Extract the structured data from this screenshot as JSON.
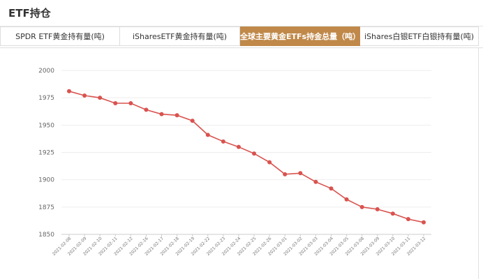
{
  "panel": {
    "title": "ETF持仓"
  },
  "tabs": [
    {
      "label": "SPDR ETF黄金持有量(吨)",
      "active": false
    },
    {
      "label": "iSharesETF黄金持有量(吨)",
      "active": false
    },
    {
      "label": "全球主要黄金ETFs持金总量（吨）",
      "active": true
    },
    {
      "label": "iShares白银ETF白银持有量(吨)",
      "active": false
    }
  ],
  "colors": {
    "accent": "#c0894a",
    "line": "#d9534f"
  },
  "chart_data": {
    "type": "line",
    "categories": [
      "2021-02-08",
      "2021-02-09",
      "2021-02-10",
      "2021-02-11",
      "2021-02-12",
      "2021-02-16",
      "2021-02-17",
      "2021-02-18",
      "2021-02-19",
      "2021-02-22",
      "2021-02-23",
      "2021-02-24",
      "2021-02-25",
      "2021-02-26",
      "2021-03-01",
      "2021-03-02",
      "2021-03-03",
      "2021-03-04",
      "2021-03-05",
      "2021-03-08",
      "2021-03-09",
      "2021-03-10",
      "2021-03-11",
      "2021-03-12"
    ],
    "series": [
      {
        "values": [
          1981,
          1977,
          1975,
          1970,
          1970,
          1964,
          1960,
          1959,
          1954,
          1941,
          1935,
          1930,
          1924,
          1916,
          1905,
          1906,
          1898,
          1892,
          1882,
          1875,
          1873,
          1869,
          1864,
          1861
        ]
      }
    ],
    "yticks": [
      2000,
      1975,
      1950,
      1925,
      1900,
      1875,
      1850
    ],
    "ylim": [
      1850,
      2000
    ],
    "grid": true
  }
}
